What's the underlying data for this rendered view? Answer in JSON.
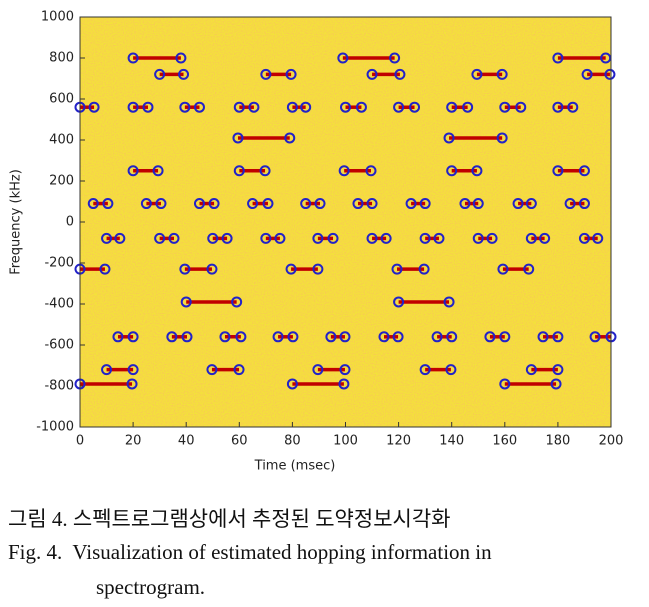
{
  "chart_data": {
    "type": "segments",
    "xlabel": "Time (msec)",
    "ylabel": "Frequency (kHz)",
    "xlim": [
      0,
      200
    ],
    "ylim": [
      -1000,
      1000
    ],
    "xticks": [
      0,
      20,
      40,
      60,
      80,
      100,
      120,
      140,
      160,
      180,
      200
    ],
    "yticks": [
      -1000,
      -800,
      -600,
      -400,
      -200,
      0,
      200,
      400,
      600,
      800,
      1000
    ],
    "line_color": "#c00000",
    "marker_color": "#2222c8",
    "background": "#f4e23a",
    "segments": [
      [
        20,
        38,
        800
      ],
      [
        99,
        118.5,
        800
      ],
      [
        180,
        198,
        800
      ],
      [
        30,
        39,
        720
      ],
      [
        70,
        79.5,
        720
      ],
      [
        110,
        120.5,
        720
      ],
      [
        149.5,
        159,
        720
      ],
      [
        191,
        199.6,
        720
      ],
      [
        0,
        5.3,
        560
      ],
      [
        20,
        25.6,
        560
      ],
      [
        39.5,
        45,
        560
      ],
      [
        60,
        65.5,
        560
      ],
      [
        80,
        85,
        560
      ],
      [
        100,
        106,
        560
      ],
      [
        120,
        126,
        560
      ],
      [
        140,
        146,
        560
      ],
      [
        160,
        166,
        560
      ],
      [
        180,
        185.6,
        560
      ],
      [
        59.5,
        79,
        410
      ],
      [
        139,
        159,
        410
      ],
      [
        20,
        29.4,
        250
      ],
      [
        60,
        69.7,
        250
      ],
      [
        99.5,
        109.6,
        250
      ],
      [
        140,
        149.5,
        250
      ],
      [
        180,
        190,
        250
      ],
      [
        5,
        10.5,
        90
      ],
      [
        25,
        30.5,
        90
      ],
      [
        45,
        50.5,
        90
      ],
      [
        65,
        70.8,
        90
      ],
      [
        85,
        90.4,
        90
      ],
      [
        104.7,
        110,
        90
      ],
      [
        124.7,
        130,
        90
      ],
      [
        145,
        150,
        90
      ],
      [
        165,
        170,
        90
      ],
      [
        184.6,
        190,
        90
      ],
      [
        10,
        15,
        -80
      ],
      [
        30,
        35.4,
        -80
      ],
      [
        50,
        55.4,
        -80
      ],
      [
        70,
        75.3,
        -80
      ],
      [
        89.6,
        95.3,
        -80
      ],
      [
        110,
        115.3,
        -80
      ],
      [
        130,
        135.2,
        -80
      ],
      [
        150,
        155.2,
        -80
      ],
      [
        170,
        175,
        -80
      ],
      [
        190,
        195,
        -80
      ],
      [
        0,
        9.4,
        -230
      ],
      [
        39.5,
        49.7,
        -230
      ],
      [
        79.5,
        89.6,
        -230
      ],
      [
        119.4,
        129.6,
        -230
      ],
      [
        159.3,
        169,
        -230
      ],
      [
        40,
        59,
        -390
      ],
      [
        120,
        139,
        -390
      ],
      [
        14.3,
        20,
        -560
      ],
      [
        34.6,
        40.3,
        -560
      ],
      [
        54.6,
        60.6,
        -560
      ],
      [
        74.6,
        80.2,
        -560
      ],
      [
        94.5,
        99.8,
        -560
      ],
      [
        114.5,
        119.8,
        -560
      ],
      [
        134.5,
        140,
        -560
      ],
      [
        154.4,
        160,
        -560
      ],
      [
        174.4,
        180,
        -560
      ],
      [
        194,
        200,
        -560
      ],
      [
        10,
        20,
        -720
      ],
      [
        49.7,
        59.9,
        -720
      ],
      [
        89.6,
        99.8,
        -720
      ],
      [
        130,
        139.7,
        -720
      ],
      [
        170,
        180,
        -720
      ],
      [
        0,
        19.6,
        -790
      ],
      [
        80,
        99.4,
        -790
      ],
      [
        160,
        179.3,
        -790
      ]
    ]
  },
  "caption": {
    "korean": "그림 4. 스펙트로그램상에서 추정된 도약정보시각화",
    "english": [
      "Fig. 4.  Visualization of estimated hopping information in",
      "spectrogram."
    ]
  }
}
